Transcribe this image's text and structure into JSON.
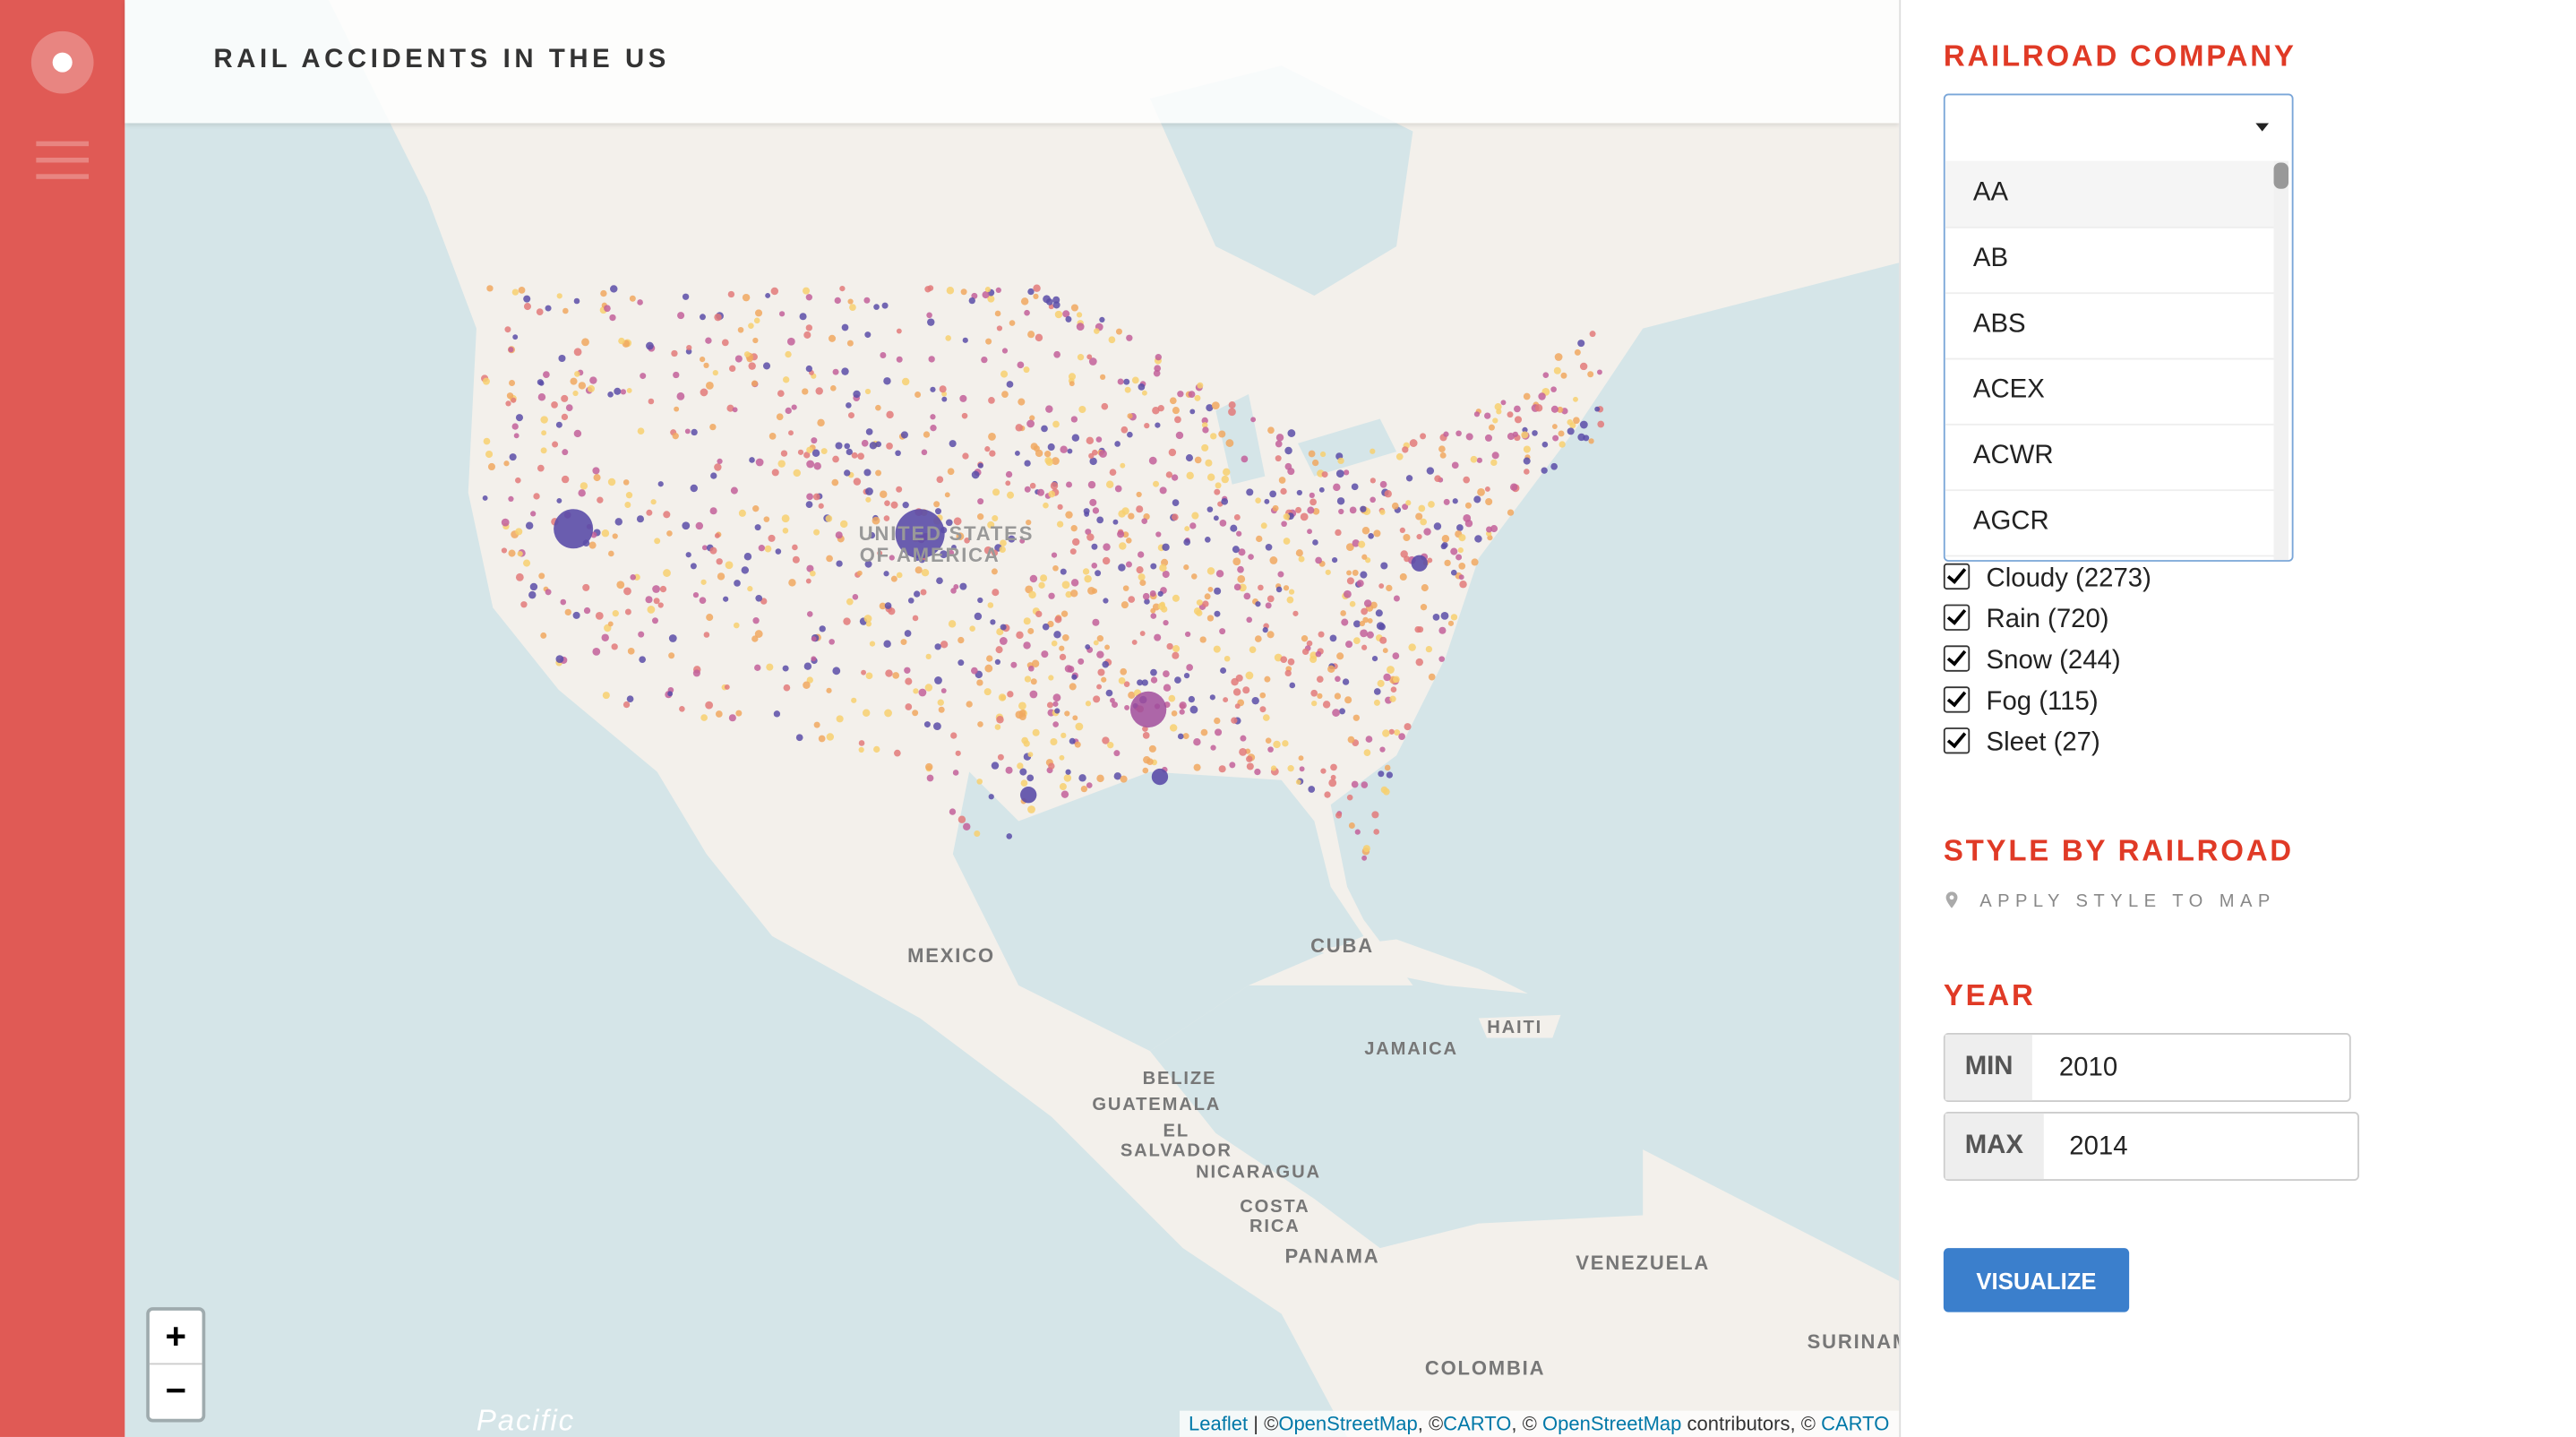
{
  "header": {
    "title": "RAIL ACCIDENTS IN THE US"
  },
  "map": {
    "labels": [
      "UNITED STATES",
      "OF AMERICA",
      "MEXICO",
      "CUBA",
      "JAMAICA",
      "HAITI",
      "BELIZE",
      "GUATEMALA",
      "EL",
      "SALVADOR",
      "NICARAGUA",
      "COSTA",
      "RICA",
      "PANAMA",
      "VENEZUELA",
      "COLOMBIA",
      "SURINAME",
      "Pacific"
    ],
    "zoom": [
      "+",
      "−"
    ],
    "attribution": [
      "Leaflet",
      " | ©",
      "OpenStreetMap",
      ", ©",
      "CARTO",
      ", © ",
      "OpenStreetMap",
      " contributors, © ",
      "CARTO"
    ]
  },
  "panel": {
    "railroad_company": {
      "title": "RAILROAD COMPANY",
      "options": [
        "AA",
        "AB",
        "ABS",
        "ACEX",
        "ACWR",
        "AGCR"
      ]
    },
    "weather": [
      "Cloudy (2273)",
      "Rain (720)",
      "Snow (244)",
      "Fog (115)",
      "Sleet (27)"
    ],
    "style_by_railroad": {
      "title": "STYLE BY RAILROAD",
      "action": "APPLY STYLE TO MAP"
    },
    "year": {
      "title": "YEAR",
      "min_label": "MIN",
      "min": "2010",
      "max_label": "MAX",
      "max": "2014"
    },
    "button": "VISUALIZE"
  }
}
